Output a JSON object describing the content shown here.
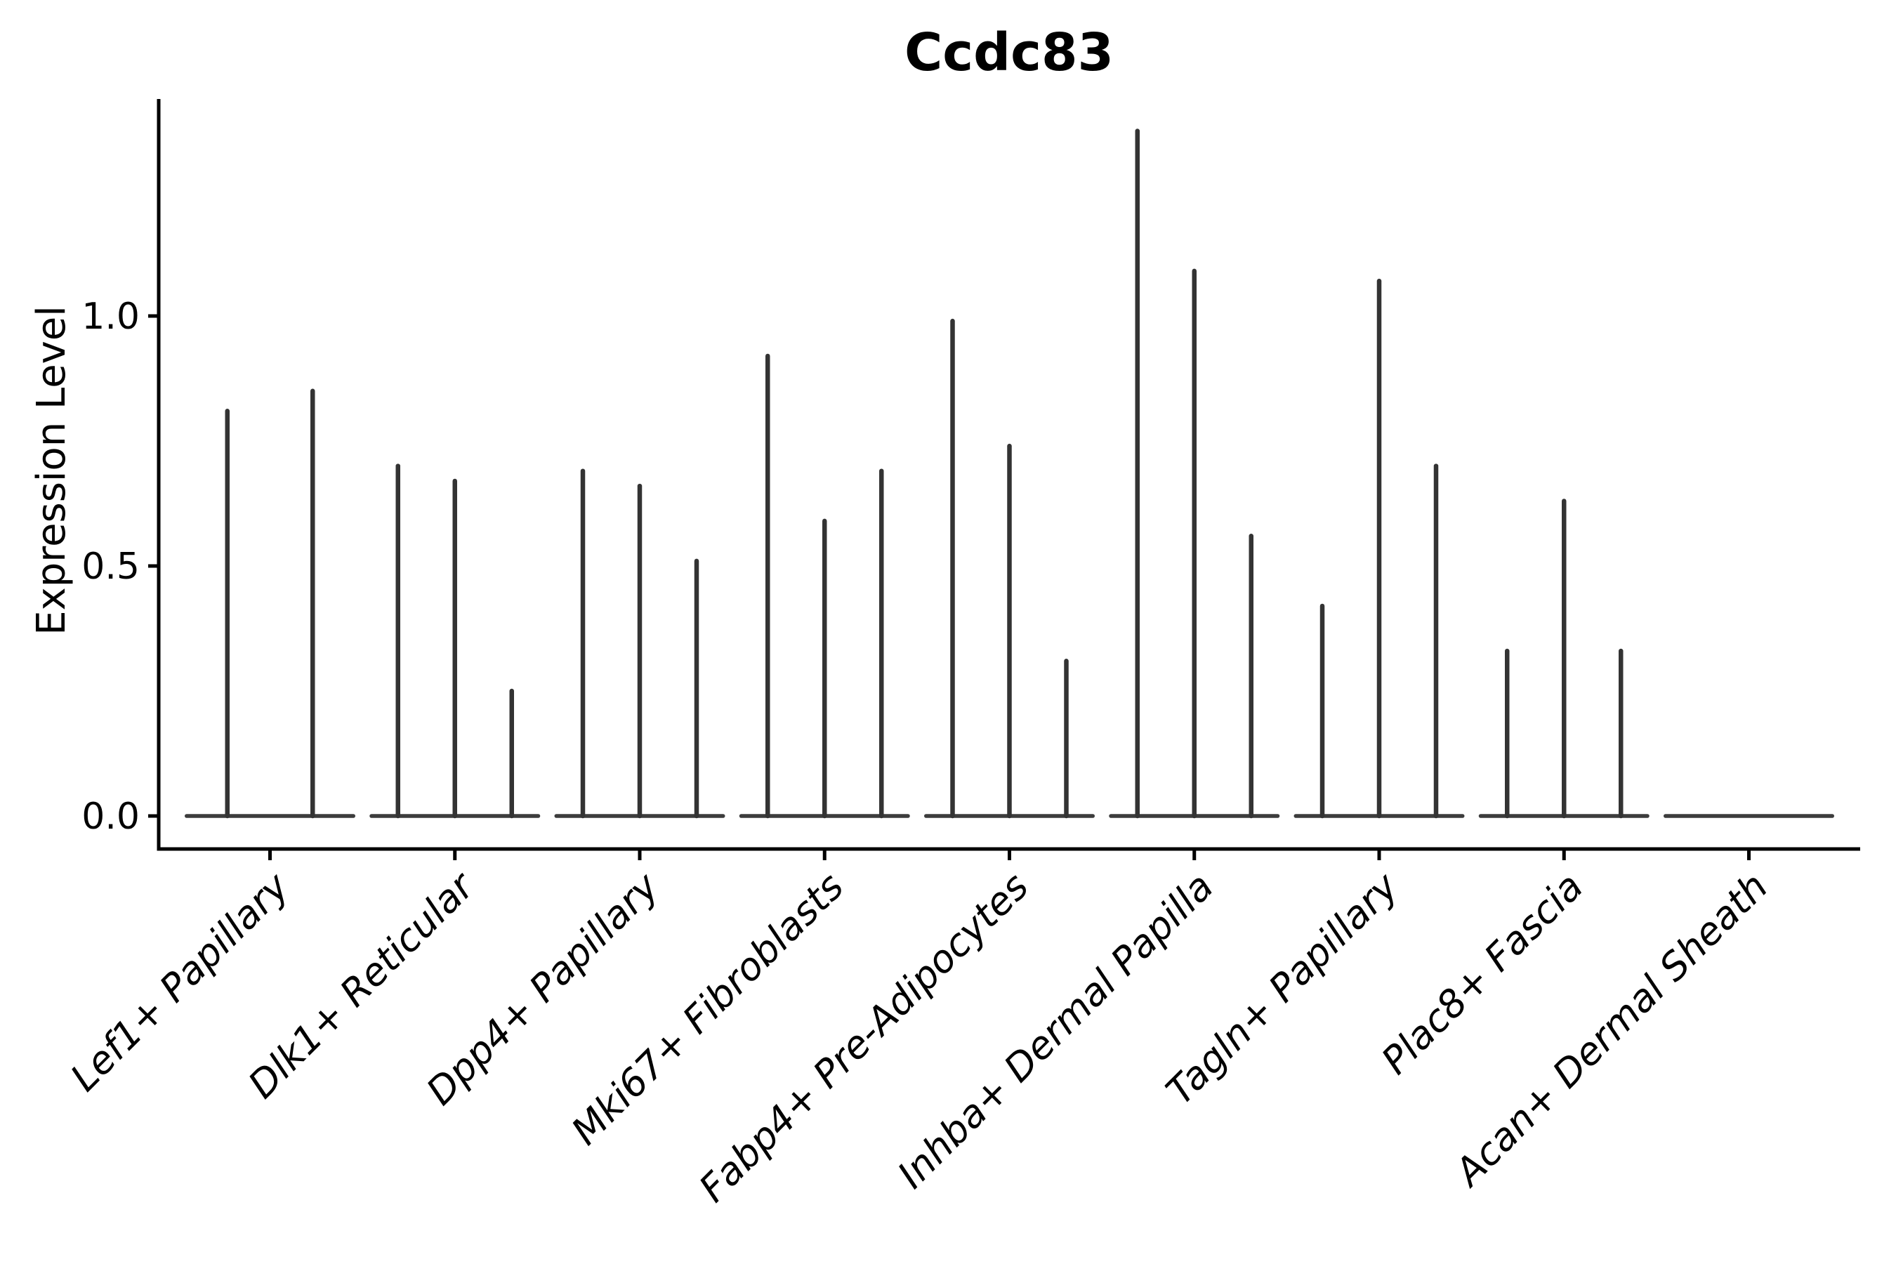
{
  "figure": {
    "title": "Ccdc83",
    "y_axis_label": "Expression Level"
  },
  "chart_data": {
    "type": "bar",
    "variant": "violin plot (Seurat-style VlnPlot) with violins collapsed to a baseline at 0 plus thin vertical spikes; each spike is one violin reaching its max expression",
    "title": "Ccdc83",
    "xlabel": "",
    "ylabel": "Expression Level",
    "ylim": [
      -0.07,
      1.43
    ],
    "yticks": [
      0.0,
      0.5,
      1.0
    ],
    "ytick_labels": [
      "0.0",
      "0.5",
      "1.0"
    ],
    "grid": false,
    "legend": "none",
    "categories": [
      "Lef1+ Papillary",
      "Dlk1+ Reticular",
      "Dpp4+ Papillary",
      "Mki67+ Fibroblasts",
      "Fabp4+ Pre-Adipocytes",
      "Inhba+ Dermal Papilla",
      "Tagln+ Papillary",
      "Plac8+ Fascia",
      "Acan+ Dermal Sheath"
    ],
    "groups": [
      {
        "category": "Lef1+ Papillary",
        "spikes": [
          0.81,
          0.85
        ]
      },
      {
        "category": "Dlk1+ Reticular",
        "spikes": [
          0.7,
          0.67,
          0.25
        ]
      },
      {
        "category": "Dpp4+ Papillary",
        "spikes": [
          0.69,
          0.66,
          0.51
        ]
      },
      {
        "category": "Mki67+ Fibroblasts",
        "spikes": [
          0.92,
          0.59,
          0.69
        ]
      },
      {
        "category": "Fabp4+ Pre-Adipocytes",
        "spikes": [
          0.99,
          0.74,
          0.31
        ]
      },
      {
        "category": "Inhba+ Dermal Papilla",
        "spikes": [
          1.37,
          1.09,
          0.56
        ]
      },
      {
        "category": "Tagln+ Papillary",
        "spikes": [
          0.42,
          1.07,
          0.7
        ]
      },
      {
        "category": "Plac8+ Fascia",
        "spikes": [
          0.33,
          0.63,
          0.33
        ]
      },
      {
        "category": "Acan+ Dermal Sheath",
        "spikes": []
      }
    ],
    "colors": {
      "violin_spike": "#333333",
      "violin_baseline": "#3c3c3c",
      "axis": "#000000",
      "text": "#000000",
      "background": "#ffffff"
    }
  }
}
